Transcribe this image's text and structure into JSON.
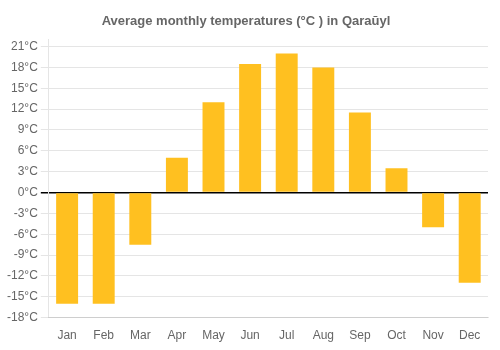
{
  "chart_data": {
    "type": "bar",
    "title": "Average monthly temperatures (°C ) in Qaraūyl",
    "categories": [
      "Jan",
      "Feb",
      "Mar",
      "Apr",
      "May",
      "Jun",
      "Jul",
      "Aug",
      "Sep",
      "Oct",
      "Nov",
      "Dec"
    ],
    "values": [
      -16,
      -16,
      -7.5,
      5,
      13,
      18.5,
      20,
      18,
      11.5,
      3.5,
      -5,
      -13
    ],
    "color": "#FFC020",
    "ylim": [
      -18,
      22
    ],
    "yticks": [
      {
        "value": -18,
        "label": "-18°C"
      },
      {
        "value": -15,
        "label": "-15°C"
      },
      {
        "value": -12,
        "label": "-12°C"
      },
      {
        "value": -9,
        "label": "-9°C"
      },
      {
        "value": -6,
        "label": "-6°C"
      },
      {
        "value": -3,
        "label": "-3°C"
      },
      {
        "value": 0,
        "label": "0°C"
      },
      {
        "value": 3,
        "label": "3°C"
      },
      {
        "value": 6,
        "label": "6°C"
      },
      {
        "value": 9,
        "label": "9°C"
      },
      {
        "value": 12,
        "label": "12°C"
      },
      {
        "value": 15,
        "label": "15°C"
      },
      {
        "value": 18,
        "label": "18°C"
      },
      {
        "value": 21,
        "label": "21°C"
      }
    ],
    "grid": true
  }
}
